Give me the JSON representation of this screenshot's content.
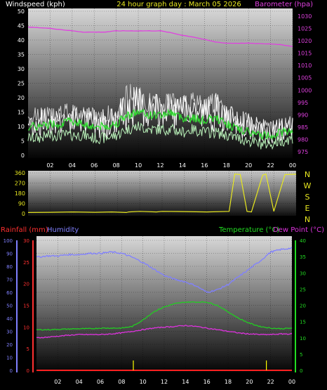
{
  "header": {
    "left_title": "Windspeed (kph)",
    "center_title": "24 hour graph day : March 05 2026",
    "right_title": "Barometer (hpa)"
  },
  "mid_panel": {
    "compass_labels": [
      "N",
      "W",
      "S",
      "E",
      "N"
    ]
  },
  "bottom_header": {
    "rainfall_label": "Rainfall (mm)",
    "humidity_label": "Humidity",
    "temperature_label": "Temperature (°C)",
    "dewpoint_label": "Dew Point (°C)"
  },
  "colors": {
    "wind": "#ffffff",
    "gust": "#cccccc",
    "wind_avg": "#33dd33",
    "barometer": "#e040e0",
    "direction": "#e8e820",
    "rainfall": "#ff2020",
    "humidity": "#8080ff",
    "temperature": "#22cc22",
    "dewpoint": "#dd33dd",
    "rain_bar": "#ffff00"
  },
  "chart_data": [
    {
      "type": "line",
      "name": "wind_and_pressure",
      "x_ticks": [
        "02",
        "04",
        "06",
        "08",
        "10",
        "12",
        "14",
        "16",
        "18",
        "20",
        "22",
        "00"
      ],
      "y_left_ticks": [
        "0",
        "5",
        "10",
        "15",
        "20",
        "25",
        "30",
        "35",
        "40",
        "45",
        "50"
      ],
      "y_left_lim": [
        0,
        50
      ],
      "y_right_ticks": [
        "975",
        "980",
        "985",
        "990",
        "995",
        "1000",
        "1005",
        "1010",
        "1015",
        "1020",
        "1025",
        "1030"
      ],
      "y_right_lim": [
        972.5,
        1032.5
      ],
      "x_hours": [
        0,
        1,
        2,
        3,
        4,
        5,
        6,
        7,
        8,
        9,
        10,
        11,
        12,
        13,
        14,
        15,
        16,
        17,
        18,
        19,
        20,
        21,
        22,
        23,
        24
      ],
      "wind_max": [
        16,
        17,
        17,
        18,
        18,
        17,
        17,
        18,
        17,
        25,
        24,
        22,
        21,
        22,
        21,
        22,
        21,
        22,
        18,
        16,
        15,
        13,
        12,
        13,
        14
      ],
      "wind_min": [
        6,
        6,
        7,
        7,
        7,
        7,
        6,
        6,
        7,
        9,
        10,
        9,
        9,
        9,
        8,
        9,
        8,
        8,
        7,
        6,
        5,
        4,
        4,
        5,
        6
      ],
      "wind_avg": [
        10,
        10,
        11,
        11,
        12,
        11,
        10,
        10,
        11,
        14,
        15,
        14,
        14,
        15,
        13,
        13,
        12,
        13,
        11,
        9,
        8,
        7,
        7,
        8,
        9
      ],
      "barometer": [
        1025.5,
        1025.3,
        1025,
        1024.5,
        1024,
        1023.5,
        1023.5,
        1023.5,
        1024,
        1024,
        1024,
        1024,
        1024,
        1023.2,
        1022.2,
        1021.5,
        1020.5,
        1019.5,
        1019,
        1019,
        1019,
        1018.8,
        1018.7,
        1018.4,
        1017.7
      ]
    },
    {
      "type": "scatter",
      "name": "wind_direction",
      "x_ticks": [],
      "y_ticks": [
        "0",
        "90",
        "180",
        "270",
        "360"
      ],
      "y_lim": [
        0,
        360
      ],
      "x_hours": [
        0,
        2,
        4,
        6,
        7.5,
        8.8,
        9,
        10,
        11.5,
        12,
        14,
        16,
        18,
        18.5,
        19,
        19.6,
        20,
        21,
        21.3,
        22,
        23,
        24
      ],
      "direction": [
        10,
        12,
        15,
        12,
        15,
        10,
        15,
        20,
        15,
        20,
        18,
        15,
        20,
        350,
        345,
        20,
        15,
        340,
        350,
        20,
        345,
        348
      ]
    },
    {
      "type": "line",
      "name": "temperature_humidity_rain",
      "x_ticks": [
        "02",
        "04",
        "06",
        "08",
        "10",
        "12",
        "14",
        "16",
        "18",
        "20",
        "22",
        "00"
      ],
      "y_humidity_ticks": [
        "0",
        "10",
        "20",
        "30",
        "40",
        "50",
        "60",
        "70",
        "80",
        "90",
        "100"
      ],
      "y_humidity_lim": [
        0,
        100
      ],
      "y_rain_ticks": [
        "0",
        "5",
        "10",
        "15",
        "20",
        "25",
        "30"
      ],
      "y_rain_lim": [
        0,
        30
      ],
      "y_temp_ticks": [
        "0",
        "5",
        "10",
        "15",
        "20",
        "25",
        "30",
        "35",
        "40"
      ],
      "y_temp_lim": [
        0,
        40
      ],
      "x_hours": [
        0,
        1,
        2,
        3,
        4,
        5,
        6,
        7,
        8,
        9,
        10,
        11,
        12,
        13,
        14,
        15,
        16,
        17,
        18,
        19,
        20,
        21,
        22,
        23,
        24
      ],
      "humidity": [
        87,
        88,
        88,
        89,
        89,
        90,
        90,
        91,
        90,
        87,
        83,
        78,
        73,
        70,
        68,
        65,
        60,
        62,
        66,
        72,
        78,
        84,
        91,
        93,
        94
      ],
      "temperature": [
        12.5,
        12.5,
        12.6,
        12.7,
        12.8,
        12.8,
        13,
        13,
        13,
        13.5,
        15.5,
        18,
        19.5,
        20.5,
        21,
        21,
        21,
        20,
        18,
        16,
        14.5,
        13.5,
        13,
        12.8,
        13
      ],
      "dewpoint": [
        10,
        10.2,
        10.5,
        10.8,
        11,
        11,
        11,
        11.2,
        11.5,
        12,
        12.5,
        13,
        13.3,
        13.5,
        13.8,
        13.5,
        13,
        12.5,
        12,
        11.5,
        11.2,
        11,
        11,
        11.2,
        11.2
      ],
      "rainfall_bars_hours": [
        9.1,
        21.6
      ],
      "rainfall_bars_mm": [
        0,
        0
      ],
      "rainfall": [
        0,
        0,
        0,
        0,
        0,
        0,
        0,
        0,
        0,
        0,
        0,
        0,
        0,
        0,
        0,
        0,
        0,
        0,
        0,
        0,
        0,
        0,
        0,
        0,
        0
      ]
    }
  ]
}
